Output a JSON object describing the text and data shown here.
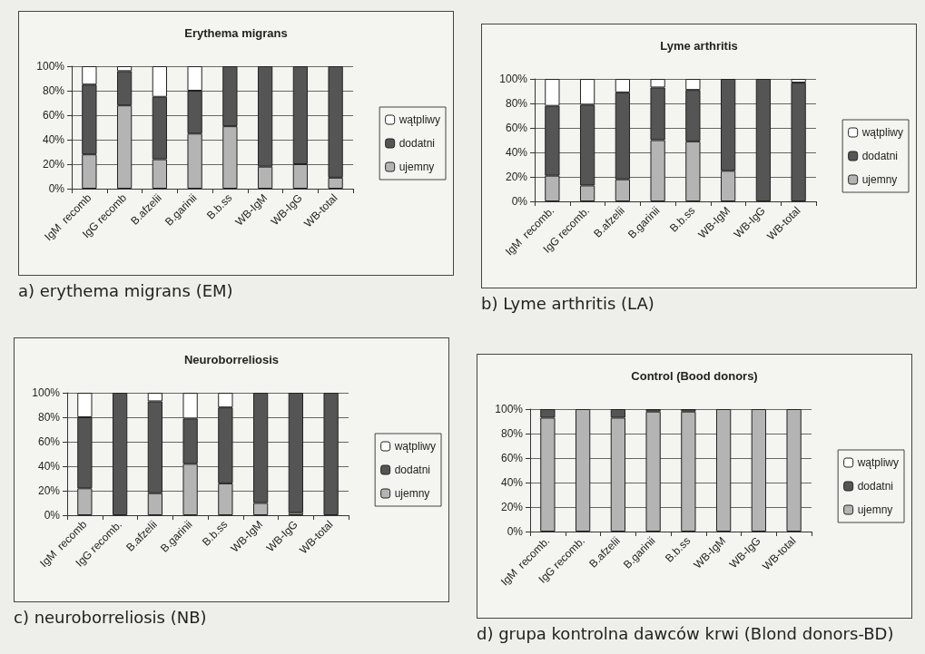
{
  "chart_data": [
    {
      "type": "bar",
      "title": "Erythema migrans",
      "stacked": true,
      "legend": "right",
      "grid": "y",
      "categories": [
        "IgM  recomb",
        "IgG recomb",
        "B.afzelii",
        "B.garinii",
        "B.b.ss",
        "WB-IgM",
        "WB-IgG",
        "WB-total"
      ],
      "series": [
        {
          "name": "ujemny",
          "color": "#b4b4b4",
          "values": [
            28,
            68,
            24,
            45,
            51,
            18,
            20,
            9
          ]
        },
        {
          "name": "dodatni",
          "color": "#555555",
          "values": [
            57,
            28,
            51,
            35,
            49,
            82,
            80,
            91
          ]
        },
        {
          "name": "wątpliwy",
          "color": "#ffffff",
          "values": [
            15,
            4,
            25,
            20,
            0,
            0,
            0,
            0
          ]
        }
      ],
      "ylim": [
        0,
        100
      ],
      "yticks": [
        {
          "value": 0,
          "label": "0%"
        },
        {
          "value": 20,
          "label": "20%"
        },
        {
          "value": 40,
          "label": "40%"
        },
        {
          "value": 60,
          "label": "60%"
        },
        {
          "value": 80,
          "label": "80%"
        },
        {
          "value": 100,
          "label": "100%"
        }
      ],
      "annotations": [
        "a) erythema migrans (EM)"
      ]
    },
    {
      "type": "bar",
      "title": "Lyme arthritis",
      "stacked": true,
      "legend": "right",
      "grid": "y",
      "categories": [
        "IgM  recomb.",
        "IgG recomb.",
        "B.afzelii",
        "B.garinii",
        "B.b.ss",
        "WB-IgM",
        "WB-IgG",
        "WB-total"
      ],
      "series": [
        {
          "name": "ujemny",
          "color": "#b4b4b4",
          "values": [
            21,
            13,
            18,
            50,
            49,
            25,
            0,
            0
          ]
        },
        {
          "name": "dodatni",
          "color": "#555555",
          "values": [
            57,
            66,
            71,
            43,
            42,
            75,
            100,
            97
          ]
        },
        {
          "name": "wątpliwy",
          "color": "#ffffff",
          "values": [
            22,
            21,
            11,
            7,
            9,
            0,
            0,
            3
          ]
        }
      ],
      "ylim": [
        0,
        100
      ],
      "yticks": [
        {
          "value": 0,
          "label": "0%"
        },
        {
          "value": 20,
          "label": "20%"
        },
        {
          "value": 40,
          "label": "40%"
        },
        {
          "value": 60,
          "label": "60%"
        },
        {
          "value": 80,
          "label": "80%"
        },
        {
          "value": 100,
          "label": "100%"
        }
      ],
      "annotations": [
        "b) Lyme arthritis (LA)"
      ]
    },
    {
      "type": "bar",
      "title": "Neuroborreliosis",
      "stacked": true,
      "legend": "right",
      "grid": "y",
      "categories": [
        "IgM  recomb",
        "IgG recomb.",
        "B.afzelii",
        "B.garinii",
        "B.b.ss",
        "WB-IgM",
        "WB-IgG",
        "WB-total"
      ],
      "series": [
        {
          "name": "ujemny",
          "color": "#b4b4b4",
          "values": [
            22,
            0,
            18,
            42,
            26,
            10,
            2,
            0
          ]
        },
        {
          "name": "dodatni",
          "color": "#555555",
          "values": [
            58,
            100,
            75,
            37,
            62,
            90,
            98,
            100
          ]
        },
        {
          "name": "wątpliwy",
          "color": "#ffffff",
          "values": [
            20,
            0,
            7,
            21,
            12,
            0,
            0,
            0
          ]
        }
      ],
      "ylim": [
        0,
        100
      ],
      "yticks": [
        {
          "value": 0,
          "label": "0%"
        },
        {
          "value": 20,
          "label": "20%"
        },
        {
          "value": 40,
          "label": "40%"
        },
        {
          "value": 60,
          "label": "60%"
        },
        {
          "value": 80,
          "label": "80%"
        },
        {
          "value": 100,
          "label": "100%"
        }
      ],
      "annotations": [
        "c) neuroborreliosis (NB)"
      ]
    },
    {
      "type": "bar",
      "title": "Control (Bood donors)",
      "stacked": true,
      "legend": "right",
      "grid": "y",
      "categories": [
        "IgM  recomb.",
        "IgG recomb.",
        "B.afzelii",
        "B.garinii",
        "B.b.ss",
        "WB-IgM",
        "WB-IgG",
        "WB-total"
      ],
      "series": [
        {
          "name": "ujemny",
          "color": "#b4b4b4",
          "values": [
            93,
            100,
            93,
            98,
            98,
            100,
            100,
            100
          ]
        },
        {
          "name": "dodatni",
          "color": "#555555",
          "values": [
            7,
            0,
            7,
            2,
            2,
            0,
            0,
            0
          ]
        },
        {
          "name": "wątpliwy",
          "color": "#ffffff",
          "values": [
            0,
            0,
            0,
            0,
            0,
            0,
            0,
            0
          ]
        }
      ],
      "ylim": [
        0,
        100
      ],
      "yticks": [
        {
          "value": 0,
          "label": "0%"
        },
        {
          "value": 20,
          "label": "20%"
        },
        {
          "value": 40,
          "label": "40%"
        },
        {
          "value": 60,
          "label": "60%"
        },
        {
          "value": 80,
          "label": "80%"
        },
        {
          "value": 100,
          "label": "100%"
        }
      ],
      "annotations": [
        "d) grupa kontrolna dawców krwi (Blond donors-BD)"
      ]
    }
  ]
}
